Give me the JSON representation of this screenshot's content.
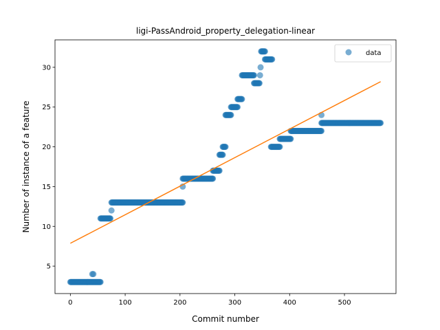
{
  "chart_data": {
    "type": "scatter",
    "title": "ligi-PassAndroid_property_delegation-linear",
    "xlabel": "Commit number",
    "ylabel": "Number of instance of a feature",
    "xlim": [
      -28,
      594
    ],
    "ylim": [
      1.55,
      33.45
    ],
    "xticks": [
      0,
      100,
      200,
      300,
      400,
      500
    ],
    "yticks": [
      5,
      10,
      15,
      20,
      25,
      30
    ],
    "grid": false,
    "legend": {
      "entries": [
        "data"
      ],
      "placement": "top-right"
    },
    "colors": {
      "data": "#1f77b4",
      "fit": "#ff7f0e"
    },
    "series": [
      {
        "name": "data",
        "kind": "scatter",
        "segments": [
          {
            "x_start": 0,
            "x_end": 55,
            "y": 3
          },
          {
            "x": 40,
            "y": 4
          },
          {
            "x": 42,
            "y": 4
          },
          {
            "x_start": 55,
            "x_end": 73,
            "y": 11
          },
          {
            "x": 75,
            "y": 12
          },
          {
            "x_start": 75,
            "x_end": 205,
            "y": 13
          },
          {
            "x": 205,
            "y": 15
          },
          {
            "x_start": 205,
            "x_end": 260,
            "y": 16
          },
          {
            "x_start": 260,
            "x_end": 272,
            "y": 17
          },
          {
            "x_start": 272,
            "x_end": 278,
            "y": 19
          },
          {
            "x_start": 278,
            "x_end": 283,
            "y": 20
          },
          {
            "x_start": 283,
            "x_end": 293,
            "y": 24
          },
          {
            "x_start": 293,
            "x_end": 305,
            "y": 25
          },
          {
            "x_start": 305,
            "x_end": 313,
            "y": 26
          },
          {
            "x_start": 313,
            "x_end": 335,
            "y": 29
          },
          {
            "x_start": 335,
            "x_end": 345,
            "y": 28
          },
          {
            "x": 346,
            "y": 29
          },
          {
            "x": 347,
            "y": 30
          },
          {
            "x_start": 348,
            "x_end": 355,
            "y": 32
          },
          {
            "x_start": 355,
            "x_end": 368,
            "y": 31
          },
          {
            "x_start": 366,
            "x_end": 382,
            "y": 20
          },
          {
            "x_start": 382,
            "x_end": 402,
            "y": 21
          },
          {
            "x_start": 402,
            "x_end": 458,
            "y": 22
          },
          {
            "x": 458,
            "y": 24
          },
          {
            "x_start": 458,
            "x_end": 566,
            "y": 23
          }
        ]
      },
      {
        "name": "",
        "kind": "line",
        "x": [
          0,
          566
        ],
        "y": [
          7.87,
          28.2
        ]
      }
    ]
  }
}
